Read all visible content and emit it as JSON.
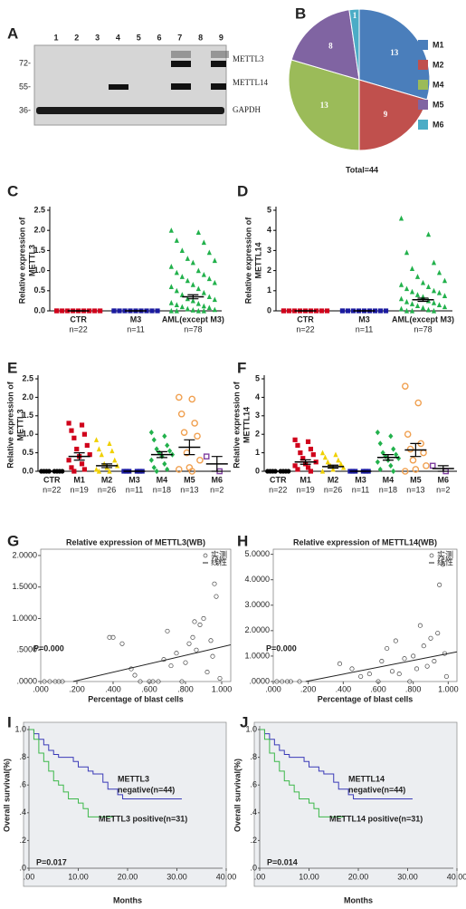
{
  "chart_data": [
    {
      "type": "blot",
      "panel": "A",
      "lanes": [
        "1",
        "2",
        "3",
        "4",
        "5",
        "6",
        "7",
        "8",
        "9"
      ],
      "markers": [
        "72-",
        "55-",
        "36-"
      ],
      "bands": [
        "METTL3",
        "METTL14",
        "GAPDH"
      ]
    },
    {
      "type": "pie",
      "panel": "B",
      "title": "Total=44",
      "categories": [
        "M1",
        "M2",
        "M4",
        "M5",
        "M6"
      ],
      "values": [
        13,
        9,
        13,
        8,
        1
      ],
      "colors": [
        "#4a7ebb",
        "#c0504d",
        "#9bbb59",
        "#8064a2",
        "#4bacc6"
      ]
    },
    {
      "type": "dot",
      "panel": "C",
      "ylabel_lines": [
        "Relative expression of",
        "METTL3"
      ],
      "categories": [
        "CTR",
        "M3",
        "AML(except M3)"
      ],
      "n_labels": [
        "n=22",
        "n=11",
        "n=78"
      ],
      "colors": [
        "#d0021b",
        "#1a1aa0",
        "#22b14c"
      ],
      "markers": [
        "square",
        "square",
        "triangle"
      ],
      "points": [
        [
          0,
          0,
          0,
          0,
          0,
          0,
          0,
          0,
          0,
          0
        ],
        [
          0,
          0,
          0,
          0,
          0,
          0,
          0,
          0,
          0,
          0
        ],
        [
          2.0,
          1.95,
          1.75,
          1.7,
          1.5,
          1.45,
          1.3,
          1.25,
          1.2,
          1.1,
          1.0,
          0.95,
          0.9,
          0.85,
          0.8,
          0.75,
          0.7,
          0.65,
          0.6,
          0.55,
          0.5,
          0.45,
          0.4,
          0.35,
          0.3,
          0.28,
          0.25,
          0.2,
          0.18,
          0.15,
          0.12,
          0.1,
          0.08,
          0.05,
          0.03,
          0.02,
          0,
          0,
          0,
          0
        ]
      ],
      "means": [
        0,
        0,
        0.35
      ],
      "sems": [
        0,
        0,
        0.05
      ],
      "ylim": [
        0,
        2.5
      ],
      "yticks": [
        {
          "value": 0,
          "label": "0.0"
        },
        {
          "value": 0.5,
          "label": "0.5"
        },
        {
          "value": 1,
          "label": "1.0"
        },
        {
          "value": 1.5,
          "label": "1.5"
        },
        {
          "value": 2,
          "label": "2.0"
        },
        {
          "value": 2.5,
          "label": "2.5"
        }
      ]
    },
    {
      "type": "dot",
      "panel": "D",
      "ylabel_lines": [
        "Relative expression of",
        "METTL14"
      ],
      "categories": [
        "CTR",
        "M3",
        "AML(except M3)"
      ],
      "n_labels": [
        "n=22",
        "n=11",
        "n=78"
      ],
      "colors": [
        "#d0021b",
        "#1a1aa0",
        "#22b14c"
      ],
      "markers": [
        "square",
        "square",
        "triangle"
      ],
      "points": [
        [
          0,
          0,
          0,
          0,
          0,
          0,
          0,
          0,
          0,
          0
        ],
        [
          0,
          0,
          0,
          0,
          0,
          0,
          0,
          0,
          0,
          0
        ],
        [
          4.6,
          3.8,
          2.9,
          2.4,
          2.1,
          1.9,
          1.7,
          1.5,
          1.4,
          1.3,
          1.2,
          1.1,
          1.0,
          0.95,
          0.9,
          0.8,
          0.75,
          0.7,
          0.6,
          0.5,
          0.45,
          0.4,
          0.35,
          0.3,
          0.25,
          0.2,
          0.15,
          0.1,
          0.05,
          0,
          0,
          0
        ]
      ],
      "means": [
        0,
        0,
        0.55
      ],
      "sems": [
        0,
        0,
        0.08
      ],
      "ylim": [
        0,
        5
      ],
      "yticks": [
        0,
        1,
        2,
        3,
        4,
        5
      ]
    },
    {
      "type": "dot",
      "panel": "E",
      "ylabel_lines": [
        "Relative expression of",
        "METTL3"
      ],
      "categories": [
        "CTR",
        "M1",
        "M2",
        "M3",
        "M4",
        "M5",
        "M6"
      ],
      "n_labels": [
        "n=22",
        "n=19",
        "n=26",
        "n=11",
        "n=18",
        "n=13",
        "n=2"
      ],
      "colors": [
        "#000000",
        "#d0021b",
        "#f0d000",
        "#1a1aa0",
        "#22b14c",
        "#f0a050",
        "#8040a0"
      ],
      "markers": [
        "circle",
        "square",
        "triangle",
        "square",
        "diamond",
        "open-circle",
        "open-square"
      ],
      "points": [
        [
          0,
          0,
          0,
          0,
          0,
          0,
          0,
          0
        ],
        [
          1.3,
          1.25,
          1.1,
          1.0,
          0.9,
          0.7,
          0.6,
          0.45,
          0.4,
          0.3,
          0.2,
          0.1,
          0.05,
          0
        ],
        [
          0.85,
          0.75,
          0.6,
          0.55,
          0.45,
          0.3,
          0.2,
          0.15,
          0.1,
          0.05,
          0,
          0
        ],
        [
          0,
          0,
          0,
          0,
          0,
          0
        ],
        [
          1.05,
          0.95,
          0.85,
          0.7,
          0.6,
          0.55,
          0.5,
          0.45,
          0.4,
          0.3,
          0.2,
          0.1,
          0.05,
          0
        ],
        [
          2.0,
          1.95,
          1.55,
          1.3,
          1.05,
          0.95,
          0.5,
          0.3,
          0.1,
          0.05,
          0
        ],
        [
          0.4,
          0
        ]
      ],
      "means": [
        0,
        0.4,
        0.15,
        0,
        0.45,
        0.65,
        0.2
      ],
      "sems": [
        0,
        0.1,
        0.05,
        0,
        0.08,
        0.2,
        0.2
      ],
      "ylim": [
        0,
        2.5
      ],
      "yticks": [
        {
          "value": 0,
          "label": "0.0"
        },
        {
          "value": 0.5,
          "label": "0.5"
        },
        {
          "value": 1,
          "label": "1.0"
        },
        {
          "value": 1.5,
          "label": "1.5"
        },
        {
          "value": 2,
          "label": "2.0"
        },
        {
          "value": 2.5,
          "label": "2.5"
        }
      ]
    },
    {
      "type": "dot",
      "panel": "F",
      "ylabel_lines": [
        "Relative expression of",
        "METTL14"
      ],
      "categories": [
        "CTR",
        "M1",
        "M2",
        "M3",
        "M4",
        "M5",
        "M6"
      ],
      "n_labels": [
        "n=22",
        "n=19",
        "n=26",
        "n=11",
        "n=18",
        "n=13",
        "n=2"
      ],
      "colors": [
        "#000000",
        "#d0021b",
        "#f0d000",
        "#1a1aa0",
        "#22b14c",
        "#f0a050",
        "#8040a0"
      ],
      "markers": [
        "circle",
        "square",
        "triangle",
        "square",
        "diamond",
        "open-circle",
        "open-square"
      ],
      "points": [
        [
          0,
          0,
          0,
          0,
          0,
          0,
          0,
          0
        ],
        [
          1.7,
          1.6,
          1.4,
          1.2,
          1.0,
          0.9,
          0.7,
          0.5,
          0.4,
          0.3,
          0.2,
          0.1,
          0
        ],
        [
          1.0,
          0.9,
          0.75,
          0.6,
          0.5,
          0.4,
          0.3,
          0.2,
          0.1,
          0
        ],
        [
          0,
          0,
          0,
          0,
          0,
          0
        ],
        [
          2.1,
          1.9,
          1.5,
          1.2,
          1.0,
          0.9,
          0.8,
          0.7,
          0.6,
          0.5,
          0.3,
          0.1,
          0
        ],
        [
          4.6,
          3.7,
          2.0,
          1.5,
          1.2,
          1.0,
          0.6,
          0.3,
          0.1,
          0
        ],
        [
          0.3,
          0
        ]
      ],
      "means": [
        0,
        0.5,
        0.25,
        0,
        0.75,
        1.15,
        0.15
      ],
      "sems": [
        0,
        0.12,
        0.08,
        0,
        0.15,
        0.35,
        0.15
      ],
      "ylim": [
        0,
        5
      ],
      "yticks": [
        0,
        1,
        2,
        3,
        4,
        5
      ]
    },
    {
      "type": "scatter",
      "panel": "G",
      "title": "Relative expression of METTL3(WB)",
      "xlabel": "Percentage of blast cells",
      "legend": [
        "实测",
        "线性"
      ],
      "annotation": "P=0.000",
      "x": [
        0.02,
        0.05,
        0.08,
        0.1,
        0.12,
        0.38,
        0.4,
        0.45,
        0.5,
        0.52,
        0.55,
        0.6,
        0.62,
        0.65,
        0.68,
        0.7,
        0.72,
        0.75,
        0.78,
        0.8,
        0.82,
        0.84,
        0.86,
        0.88,
        0.9,
        0.92,
        0.94,
        0.95,
        0.96,
        0.97,
        0.98,
        0.99,
        0.85
      ],
      "y": [
        0,
        0,
        0,
        0,
        0,
        0.7,
        0.7,
        0.6,
        0.2,
        0.1,
        0,
        0,
        0,
        0,
        0.35,
        0.8,
        0.25,
        0.45,
        0,
        0.3,
        0.6,
        0.7,
        0.5,
        0.9,
        1.0,
        0.15,
        0.65,
        0.4,
        1.55,
        1.35,
        1.9,
        0.05,
        0.95
      ],
      "fit": {
        "slope": 0.67,
        "intercept": -0.12
      },
      "xlim": [
        0,
        1.05
      ],
      "ylim": [
        0,
        2.1
      ],
      "xticks": [
        {
          "value": 0,
          "label": ".000"
        },
        {
          "value": 0.2,
          "label": ".200"
        },
        {
          "value": 0.4,
          "label": ".400"
        },
        {
          "value": 0.6,
          "label": ".600"
        },
        {
          "value": 0.8,
          "label": ".800"
        },
        {
          "value": 1,
          "label": "1.000"
        }
      ],
      "yticks": [
        {
          "value": 0,
          "label": ".0000"
        },
        {
          "value": 0.5,
          "label": ".5000"
        },
        {
          "value": 1,
          "label": "1.0000"
        },
        {
          "value": 1.5,
          "label": "1.5000"
        },
        {
          "value": 2,
          "label": "2.0000"
        }
      ]
    },
    {
      "type": "scatter",
      "panel": "H",
      "title": "Relative expression of METTL14(WB)",
      "xlabel": "Percentage of blast cells",
      "legend": [
        "实测",
        "线性"
      ],
      "annotation": "P=0.000",
      "x": [
        0.02,
        0.05,
        0.08,
        0.1,
        0.15,
        0.38,
        0.45,
        0.5,
        0.55,
        0.6,
        0.62,
        0.65,
        0.68,
        0.7,
        0.72,
        0.75,
        0.78,
        0.8,
        0.82,
        0.84,
        0.86,
        0.88,
        0.9,
        0.92,
        0.94,
        0.95,
        0.97,
        0.98,
        0.99
      ],
      "y": [
        0,
        0,
        0,
        0,
        0,
        0.7,
        0.5,
        0.2,
        0.3,
        0,
        0.8,
        1.3,
        0.4,
        1.6,
        0.3,
        0.9,
        0,
        1.0,
        0.5,
        2.2,
        1.4,
        0.6,
        1.7,
        0.8,
        1.9,
        3.8,
        4.6,
        1.1,
        0.2
      ],
      "fit": {
        "slope": 1.35,
        "intercept": -0.25
      },
      "xlim": [
        0,
        1.05
      ],
      "ylim": [
        0,
        5.2
      ],
      "xticks": [
        {
          "value": 0,
          "label": ".000"
        },
        {
          "value": 0.2,
          "label": ".200"
        },
        {
          "value": 0.4,
          "label": ".400"
        },
        {
          "value": 0.6,
          "label": ".600"
        },
        {
          "value": 0.8,
          "label": ".800"
        },
        {
          "value": 1,
          "label": "1.000"
        }
      ],
      "yticks": [
        {
          "value": 0,
          "label": ".0000"
        },
        {
          "value": 1,
          "label": "1.0000"
        },
        {
          "value": 2,
          "label": "2.0000"
        },
        {
          "value": 3,
          "label": "3.0000"
        },
        {
          "value": 4,
          "label": "4.0000"
        },
        {
          "value": 5,
          "label": "5.0000"
        }
      ]
    },
    {
      "type": "km",
      "panel": "I",
      "xlabel": "Months",
      "ylabel": "Overall survival(%)",
      "annotation": "P=0.017",
      "xlim": [
        0,
        40
      ],
      "ylim": [
        0,
        1
      ],
      "xticks": [
        {
          "value": 0,
          "label": ".00"
        },
        {
          "value": 10,
          "label": "10.00"
        },
        {
          "value": 20,
          "label": "20.00"
        },
        {
          "value": 30,
          "label": "30.00"
        },
        {
          "value": 40,
          "label": "40.00"
        }
      ],
      "yticks": [
        {
          "value": 0,
          "label": ".0"
        },
        {
          "value": 0.2,
          "label": ".2"
        },
        {
          "value": 0.4,
          "label": ".4"
        },
        {
          "value": 0.6,
          "label": ".6"
        },
        {
          "value": 0.8,
          "label": ".8"
        },
        {
          "value": 1,
          "label": "1.0"
        }
      ],
      "series": [
        {
          "label_lines": [
            "METTL3",
            "negative(n=44)"
          ],
          "color": "#3a3ab8",
          "x": [
            0,
            1,
            2,
            3,
            4,
            5,
            6,
            8,
            9,
            10,
            12,
            13,
            15,
            16,
            18,
            19,
            20,
            31
          ],
          "y": [
            1,
            0.97,
            0.93,
            0.89,
            0.85,
            0.82,
            0.8,
            0.8,
            0.77,
            0.73,
            0.7,
            0.68,
            0.62,
            0.57,
            0.53,
            0.5,
            0.5,
            0.5
          ]
        },
        {
          "label_lines": [
            "METTL3 positive(n=31)"
          ],
          "color": "#3cb84a",
          "x": [
            0,
            1,
            2,
            3,
            4,
            5,
            6,
            7,
            8,
            10,
            11,
            12,
            13,
            15,
            17
          ],
          "y": [
            1,
            0.93,
            0.83,
            0.77,
            0.7,
            0.63,
            0.6,
            0.55,
            0.5,
            0.47,
            0.43,
            0.37,
            0.37,
            0.37,
            0.37
          ]
        }
      ]
    },
    {
      "type": "km",
      "panel": "J",
      "xlabel": "Months",
      "ylabel": "Overall survival(%)",
      "annotation": "P=0.014",
      "xlim": [
        0,
        40
      ],
      "ylim": [
        0,
        1
      ],
      "xticks": [
        {
          "value": 0,
          "label": ".00"
        },
        {
          "value": 10,
          "label": "10.00"
        },
        {
          "value": 20,
          "label": "20.00"
        },
        {
          "value": 30,
          "label": "30.00"
        },
        {
          "value": 40,
          "label": "40.00"
        }
      ],
      "yticks": [
        {
          "value": 0,
          "label": ".0"
        },
        {
          "value": 0.2,
          "label": ".2"
        },
        {
          "value": 0.4,
          "label": ".4"
        },
        {
          "value": 0.6,
          "label": ".6"
        },
        {
          "value": 0.8,
          "label": ".8"
        },
        {
          "value": 1,
          "label": "1.0"
        }
      ],
      "series": [
        {
          "label_lines": [
            "METTL14",
            "negative(n=44)"
          ],
          "color": "#3a3ab8",
          "x": [
            0,
            1,
            2,
            3,
            4,
            5,
            6,
            8,
            9,
            10,
            12,
            13,
            15,
            16,
            18,
            19,
            20,
            31
          ],
          "y": [
            1,
            0.97,
            0.93,
            0.89,
            0.85,
            0.82,
            0.8,
            0.8,
            0.77,
            0.73,
            0.7,
            0.68,
            0.62,
            0.57,
            0.53,
            0.5,
            0.5,
            0.5
          ]
        },
        {
          "label_lines": [
            "METTL14 positive(n=31)"
          ],
          "color": "#3cb84a",
          "x": [
            0,
            1,
            2,
            3,
            4,
            5,
            6,
            7,
            8,
            10,
            11,
            12,
            13,
            15,
            17
          ],
          "y": [
            1,
            0.93,
            0.83,
            0.77,
            0.7,
            0.63,
            0.6,
            0.55,
            0.5,
            0.47,
            0.43,
            0.37,
            0.37,
            0.37,
            0.37
          ]
        }
      ]
    }
  ]
}
